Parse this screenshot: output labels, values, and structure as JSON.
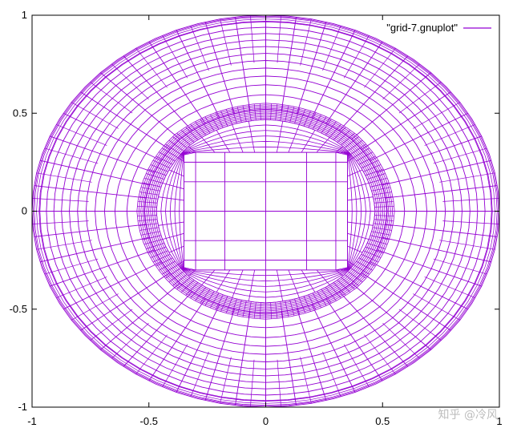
{
  "chart_data": {
    "type": "line",
    "title": "",
    "xlabel": "",
    "ylabel": "",
    "xlim": [
      -1,
      1
    ],
    "ylim": [
      -1,
      1
    ],
    "x_ticks": [
      -1,
      -0.5,
      0,
      0.5,
      1
    ],
    "y_ticks": [
      -1,
      -0.5,
      0,
      0.5,
      1
    ],
    "x_tick_labels": [
      "-1",
      "-0.5",
      "0",
      "0.5",
      "1"
    ],
    "y_tick_labels": [
      "-1",
      "-0.5",
      "0",
      "0.5",
      "1"
    ],
    "grid": false,
    "legend_position": "top-right",
    "series": [
      {
        "name": "\"grid-7.gnuplot\"",
        "color": "#9400d3",
        "description_mesh": {
          "outer_ellipse": {
            "rx": 1.0,
            "ry": 1.0
          },
          "dense_ring": {
            "rx": 0.52,
            "ry": 0.52
          },
          "inner_rect": {
            "x": [
              -0.35,
              0.35
            ],
            "y": [
              -0.3,
              0.3
            ]
          },
          "inner_grid_x": [
            -0.35,
            -0.3,
            -0.175,
            0,
            0.175,
            0.3,
            0.35
          ],
          "inner_grid_y": [
            -0.3,
            -0.25,
            -0.15,
            0,
            0.15,
            0.25,
            0.3
          ]
        }
      }
    ]
  },
  "watermark": "知乎 @冷风"
}
